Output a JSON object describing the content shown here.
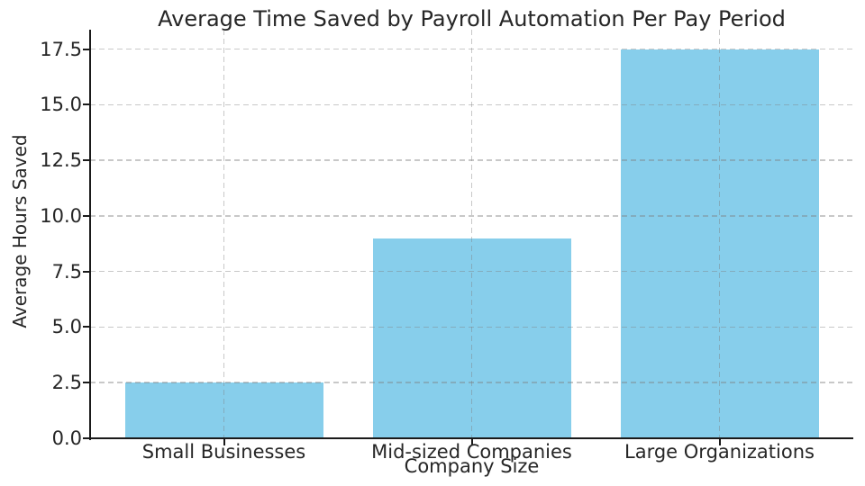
{
  "chart_data": {
    "type": "bar",
    "title": "Average Time Saved by Payroll Automation Per Pay Period",
    "xlabel": "Company Size",
    "ylabel": "Average Hours Saved",
    "categories": [
      "Small Businesses",
      "Mid-sized Companies",
      "Large Organizations"
    ],
    "values": [
      2.5,
      9,
      17.5
    ],
    "yticks": [
      0,
      2.5,
      5,
      7.5,
      10,
      12.5,
      15,
      17.5
    ],
    "ytick_labels": [
      "0.0",
      "2.5",
      "5.0",
      "7.5",
      "10.0",
      "12.5",
      "15.0",
      "17.5"
    ],
    "ylim": [
      0,
      18.375
    ],
    "grid": true,
    "grid_style": "dashed",
    "legend": "none",
    "bar_color": "#87CEEB",
    "spine_color": "#1a1a1a",
    "text_color": "#262626",
    "background_color": "#ffffff"
  }
}
